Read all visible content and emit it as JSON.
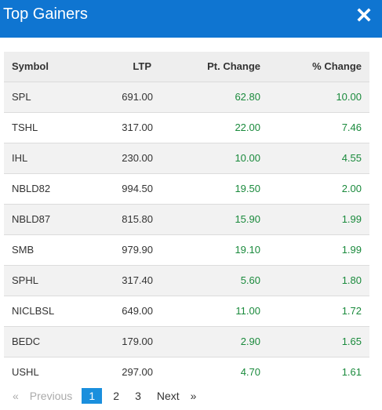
{
  "header": {
    "title": "Top Gainers",
    "close_icon": "close-icon"
  },
  "table": {
    "columns": [
      "Symbol",
      "LTP",
      "Pt. Change",
      "% Change"
    ],
    "rows": [
      {
        "symbol": "SPL",
        "ltp": "691.00",
        "pt_change": "62.80",
        "pct_change": "10.00"
      },
      {
        "symbol": "TSHL",
        "ltp": "317.00",
        "pt_change": "22.00",
        "pct_change": "7.46"
      },
      {
        "symbol": "IHL",
        "ltp": "230.00",
        "pt_change": "10.00",
        "pct_change": "4.55"
      },
      {
        "symbol": "NBLD82",
        "ltp": "994.50",
        "pt_change": "19.50",
        "pct_change": "2.00"
      },
      {
        "symbol": "NBLD87",
        "ltp": "815.80",
        "pt_change": "15.90",
        "pct_change": "1.99"
      },
      {
        "symbol": "SMB",
        "ltp": "979.90",
        "pt_change": "19.10",
        "pct_change": "1.99"
      },
      {
        "symbol": "SPHL",
        "ltp": "317.40",
        "pt_change": "5.60",
        "pct_change": "1.80"
      },
      {
        "symbol": "NICLBSL",
        "ltp": "649.00",
        "pt_change": "11.00",
        "pct_change": "1.72"
      },
      {
        "symbol": "BEDC",
        "ltp": "179.00",
        "pt_change": "2.90",
        "pct_change": "1.65"
      },
      {
        "symbol": "USHL",
        "ltp": "297.00",
        "pt_change": "4.70",
        "pct_change": "1.61"
      }
    ]
  },
  "pagination": {
    "prev_arrow": "«",
    "prev_label": "Previous",
    "pages": [
      "1",
      "2",
      "3"
    ],
    "current_page": "1",
    "next_label": "Next",
    "next_arrow": "»"
  },
  "colors": {
    "header_bg": "#0f75d1",
    "positive": "#1a8a3c",
    "active_page": "#1a8fdd"
  }
}
